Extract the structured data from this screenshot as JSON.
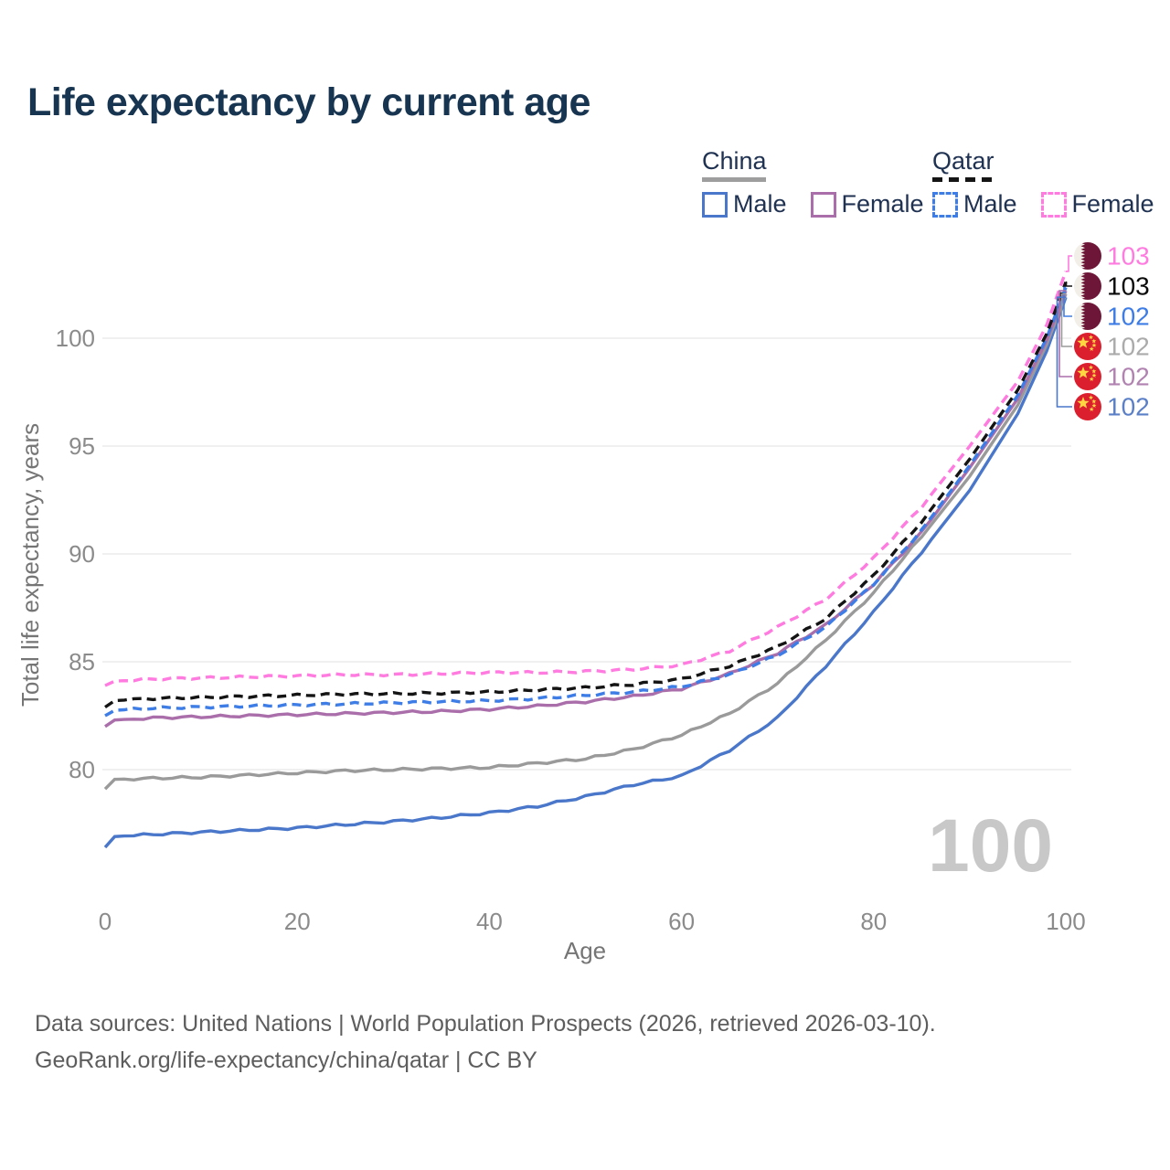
{
  "title": "Life expectancy by current age",
  "legend": {
    "groups": [
      {
        "label": "China",
        "line_style": "solid",
        "underline_color": "#9e9e9e",
        "items": [
          {
            "label": "Male",
            "color": "#4a77c9",
            "dashed": false
          },
          {
            "label": "Female",
            "color": "#aa6fab",
            "dashed": false
          }
        ]
      },
      {
        "label": "Qatar",
        "line_style": "dashed",
        "underline_color": "#151515",
        "items": [
          {
            "label": "Male",
            "color": "#3e7de5",
            "dashed": true
          },
          {
            "label": "Female",
            "color": "#ff7bdf",
            "dashed": true
          }
        ]
      }
    ]
  },
  "watermark": "100",
  "right_labels": [
    {
      "flag": "qatar",
      "value": "103",
      "color": "#ff7bdf"
    },
    {
      "flag": "qatar",
      "value": "103",
      "color": "#0a0a0a"
    },
    {
      "flag": "qatar",
      "value": "102",
      "color": "#3e7de5"
    },
    {
      "flag": "china",
      "value": "102",
      "color": "#ababab"
    },
    {
      "flag": "china",
      "value": "102",
      "color": "#b183b1"
    },
    {
      "flag": "china",
      "value": "102",
      "color": "#5b80c7"
    }
  ],
  "flag_colors": {
    "qatar_maroon": "#6e1637",
    "qatar_white": "#f2efe9",
    "china_red": "#dc1f2e",
    "china_yellow": "#ffd642"
  },
  "footer": {
    "line1": "Data sources: United Nations | World Population Prospects (2026, retrieved 2026-03-10).",
    "line2": "GeoRank.org/life-expectancy/china/qatar | CC BY"
  },
  "chart_data": {
    "type": "line",
    "title": "Life expectancy by current age",
    "xlabel": "Age",
    "ylabel": "Total life expectancy, years",
    "x_ticks": [
      0,
      20,
      40,
      60,
      80,
      100
    ],
    "y_ticks": [
      80,
      85,
      90,
      95,
      100
    ],
    "xlim": [
      0,
      100
    ],
    "ylim": [
      76,
      104
    ],
    "grid": "horizontal",
    "legend_position": "top-right",
    "ages": [
      0,
      1,
      5,
      10,
      15,
      20,
      25,
      30,
      35,
      40,
      45,
      50,
      55,
      60,
      65,
      70,
      75,
      80,
      85,
      90,
      95,
      98,
      100
    ],
    "series": [
      {
        "name": "Qatar Female",
        "color": "#ff7bdf",
        "dashed": true,
        "values": [
          83.9,
          84.1,
          84.2,
          84.25,
          84.3,
          84.35,
          84.4,
          84.4,
          84.45,
          84.5,
          84.5,
          84.55,
          84.65,
          84.85,
          85.5,
          86.6,
          87.9,
          89.8,
          92.2,
          95.0,
          98.0,
          100.6,
          103.1
        ]
      },
      {
        "name": "Qatar Both sexes",
        "color": "#141414",
        "dashed": true,
        "values": [
          82.9,
          83.2,
          83.3,
          83.35,
          83.4,
          83.45,
          83.5,
          83.52,
          83.55,
          83.6,
          83.7,
          83.8,
          83.95,
          84.2,
          84.8,
          85.7,
          87.0,
          89.0,
          91.5,
          94.4,
          97.6,
          100.2,
          102.6
        ]
      },
      {
        "name": "Qatar Male",
        "color": "#3e7de5",
        "dashed": true,
        "values": [
          82.5,
          82.75,
          82.85,
          82.9,
          82.95,
          83.0,
          83.05,
          83.1,
          83.15,
          83.2,
          83.3,
          83.45,
          83.6,
          83.85,
          84.4,
          85.3,
          86.6,
          88.6,
          91.1,
          94.1,
          97.35,
          100.0,
          102.35
        ]
      },
      {
        "name": "China Female",
        "color": "#aa6fab",
        "dashed": false,
        "values": [
          82.0,
          82.3,
          82.4,
          82.45,
          82.5,
          82.55,
          82.6,
          82.65,
          82.7,
          82.8,
          82.95,
          83.15,
          83.4,
          83.75,
          84.45,
          85.4,
          86.7,
          88.6,
          91.0,
          94.0,
          97.2,
          99.9,
          102.2
        ]
      },
      {
        "name": "China Both sexes",
        "color": "#9a9a9a",
        "dashed": false,
        "values": [
          79.1,
          79.55,
          79.6,
          79.65,
          79.75,
          79.85,
          79.95,
          80.0,
          80.05,
          80.1,
          80.3,
          80.5,
          80.95,
          81.6,
          82.6,
          84.0,
          86.0,
          88.2,
          90.8,
          93.6,
          96.9,
          99.7,
          102.05
        ]
      },
      {
        "name": "China Male",
        "color": "#4a77c9",
        "dashed": false,
        "values": [
          76.4,
          76.9,
          77.0,
          77.1,
          77.2,
          77.3,
          77.45,
          77.6,
          77.78,
          78.0,
          78.3,
          78.75,
          79.3,
          79.7,
          80.9,
          82.4,
          84.8,
          87.3,
          90.1,
          92.95,
          96.5,
          99.4,
          101.9
        ]
      }
    ],
    "end_label_row_of_series": [
      0,
      1,
      2,
      4,
      3,
      5
    ]
  }
}
